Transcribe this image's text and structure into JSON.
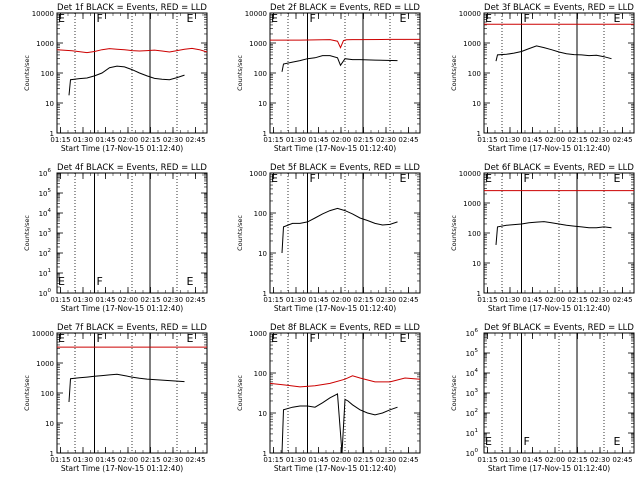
{
  "figure": {
    "xlabel": "Start Time (17-Nov-15 01:12:40)",
    "ylabel": "Counts/sec"
  },
  "colors": {
    "events": "#000000",
    "lld": "#cc0000"
  },
  "chart_data": [
    {
      "type": "line",
      "title": "Det 1f BLACK = Events, RED = LLD",
      "scale": "log",
      "ylim": [
        1,
        10000
      ],
      "ytick_labels": [
        "1",
        "10",
        "100",
        "1000",
        "10000"
      ],
      "xtick_labels": [
        "01:15",
        "01:30",
        "01:45",
        "02:00",
        "02:15",
        "02:30",
        "02:45"
      ],
      "xticks_min": [
        2.33,
        17.33,
        32.33,
        47.33,
        62.33,
        77.33,
        92.33
      ],
      "xlim": [
        0,
        100
      ],
      "markers": [
        {
          "label": "E",
          "x": 0
        },
        {
          "label": "F",
          "x": 25
        },
        {
          "label": "E",
          "x": 85
        }
      ],
      "solid_lines": [
        25,
        62
      ],
      "dotted_lines": [
        12,
        50,
        80
      ],
      "series": [
        {
          "name": "LLD",
          "color": "lld",
          "x": [
            0,
            10,
            20,
            25,
            30,
            35,
            40,
            45,
            50,
            55,
            60,
            65,
            70,
            75,
            80,
            85,
            90,
            95,
            100
          ],
          "y": [
            600,
            550,
            480,
            520,
            600,
            650,
            620,
            600,
            560,
            540,
            560,
            580,
            540,
            500,
            560,
            620,
            660,
            600,
            500
          ]
        },
        {
          "name": "Events",
          "color": "events",
          "x": [
            8,
            9,
            15,
            20,
            25,
            30,
            35,
            40,
            45,
            50,
            55,
            60,
            65,
            70,
            75,
            80,
            85
          ],
          "y": [
            18,
            60,
            65,
            68,
            80,
            100,
            150,
            170,
            160,
            130,
            100,
            80,
            66,
            62,
            60,
            70,
            85
          ]
        }
      ]
    },
    {
      "type": "line",
      "title": "Det 2f BLACK = Events, RED = LLD",
      "scale": "log",
      "ylim": [
        1,
        10000
      ],
      "ytick_labels": [
        "1",
        "10",
        "100",
        "1000",
        "10000"
      ],
      "xtick_labels": [
        "01:15",
        "01:30",
        "01:45",
        "02:00",
        "02:15",
        "02:30",
        "02:45"
      ],
      "xticks_min": [
        2.33,
        17.33,
        32.33,
        47.33,
        62.33,
        77.33,
        92.33
      ],
      "xlim": [
        0,
        100
      ],
      "markers": [
        {
          "label": "E",
          "x": 0
        },
        {
          "label": "F",
          "x": 25
        },
        {
          "label": "E",
          "x": 85
        }
      ],
      "solid_lines": [
        25,
        62
      ],
      "dotted_lines": [
        12,
        50,
        80
      ],
      "series": [
        {
          "name": "LLD",
          "color": "lld",
          "x": [
            0,
            20,
            40,
            45,
            47,
            49,
            51,
            55,
            60,
            80,
            100
          ],
          "y": [
            1250,
            1250,
            1300,
            1150,
            700,
            1200,
            1280,
            1300,
            1300,
            1320,
            1320
          ]
        },
        {
          "name": "Events",
          "color": "events",
          "x": [
            8,
            9,
            15,
            20,
            25,
            30,
            35,
            40,
            45,
            47,
            50,
            55,
            60,
            70,
            85
          ],
          "y": [
            110,
            200,
            230,
            260,
            300,
            320,
            380,
            380,
            320,
            180,
            300,
            280,
            280,
            270,
            260
          ]
        }
      ]
    },
    {
      "type": "line",
      "title": "Det 3f BLACK = Events, RED = LLD",
      "scale": "log",
      "ylim": [
        1,
        10000
      ],
      "ytick_labels": [
        "1",
        "10",
        "100",
        "1000",
        "10000"
      ],
      "xtick_labels": [
        "01:15",
        "01:30",
        "01:45",
        "02:00",
        "02:15",
        "02:30",
        "02:45"
      ],
      "xticks_min": [
        2.33,
        17.33,
        32.33,
        47.33,
        62.33,
        77.33,
        92.33
      ],
      "xlim": [
        0,
        100
      ],
      "markers": [
        {
          "label": "E",
          "x": 0
        },
        {
          "label": "F",
          "x": 25
        },
        {
          "label": "E",
          "x": 85
        }
      ],
      "solid_lines": [
        25,
        62
      ],
      "dotted_lines": [
        12,
        50,
        80
      ],
      "series": [
        {
          "name": "LLD",
          "color": "lld",
          "x": [
            0,
            20,
            40,
            60,
            80,
            100
          ],
          "y": [
            4200,
            4200,
            4200,
            4200,
            4200,
            4200
          ]
        },
        {
          "name": "Events",
          "color": "events",
          "x": [
            8,
            9,
            15,
            20,
            25,
            30,
            35,
            40,
            45,
            50,
            55,
            60,
            65,
            70,
            75,
            80,
            85
          ],
          "y": [
            250,
            400,
            420,
            460,
            520,
            650,
            800,
            700,
            600,
            500,
            440,
            410,
            400,
            380,
            390,
            350,
            300
          ]
        }
      ]
    },
    {
      "type": "line",
      "title": "Det 4f BLACK = Events, RED = LLD",
      "scale": "log",
      "ylim": [
        1,
        1000000
      ],
      "ytick_labels": [
        "10^0",
        "10^1",
        "10^2",
        "10^3",
        "10^4",
        "10^5",
        "10^6"
      ],
      "xtick_labels": [
        "01:15",
        "01:30",
        "01:45",
        "02:00",
        "02:15",
        "02:30",
        "02:45"
      ],
      "xticks_min": [
        2.33,
        17.33,
        32.33,
        47.33,
        62.33,
        77.33,
        92.33
      ],
      "xlim": [
        0,
        100
      ],
      "markers": [
        {
          "label": "E",
          "x": 0
        },
        {
          "label": "F",
          "x": 25
        },
        {
          "label": "E",
          "x": 85
        }
      ],
      "solid_lines": [
        25,
        62
      ],
      "dotted_lines": [
        12,
        50,
        80
      ],
      "series": []
    },
    {
      "type": "line",
      "title": "Det 5f BLACK = Events, RED = LLD",
      "scale": "log",
      "ylim": [
        1,
        1000
      ],
      "ytick_labels": [
        "1",
        "10",
        "100",
        "1000"
      ],
      "xtick_labels": [
        "01:15",
        "01:30",
        "01:45",
        "02:00",
        "02:15",
        "02:30",
        "02:45"
      ],
      "xticks_min": [
        2.33,
        17.33,
        32.33,
        47.33,
        62.33,
        77.33,
        92.33
      ],
      "xlim": [
        0,
        100
      ],
      "markers": [
        {
          "label": "E",
          "x": 0
        },
        {
          "label": "F",
          "x": 25
        },
        {
          "label": "E",
          "x": 85
        }
      ],
      "solid_lines": [
        25,
        62
      ],
      "dotted_lines": [
        12,
        50,
        80
      ],
      "series": [
        {
          "name": "Events",
          "color": "events",
          "x": [
            8,
            9,
            15,
            20,
            25,
            30,
            35,
            40,
            45,
            50,
            55,
            60,
            65,
            70,
            75,
            80,
            85
          ],
          "y": [
            10,
            45,
            55,
            55,
            60,
            75,
            95,
            115,
            130,
            115,
            95,
            75,
            65,
            55,
            50,
            52,
            60
          ]
        }
      ]
    },
    {
      "type": "line",
      "title": "Det 6f BLACK = Events, RED = LLD",
      "scale": "log",
      "ylim": [
        1,
        10000
      ],
      "ytick_labels": [
        "1",
        "10",
        "100",
        "1000",
        "10000"
      ],
      "xtick_labels": [
        "01:15",
        "01:30",
        "01:45",
        "02:00",
        "02:15",
        "02:30",
        "02:45"
      ],
      "xticks_min": [
        2.33,
        17.33,
        32.33,
        47.33,
        62.33,
        77.33,
        92.33
      ],
      "xlim": [
        0,
        100
      ],
      "markers": [
        {
          "label": "E",
          "x": 0
        },
        {
          "label": "F",
          "x": 25
        },
        {
          "label": "E",
          "x": 85
        }
      ],
      "solid_lines": [
        25,
        62
      ],
      "dotted_lines": [
        12,
        50,
        80
      ],
      "series": [
        {
          "name": "LLD",
          "color": "lld",
          "x": [
            0,
            20,
            40,
            60,
            80,
            100
          ],
          "y": [
            2600,
            2600,
            2600,
            2600,
            2600,
            2600
          ]
        },
        {
          "name": "Events",
          "color": "events",
          "x": [
            8,
            9,
            15,
            20,
            25,
            30,
            35,
            40,
            45,
            50,
            55,
            60,
            65,
            70,
            75,
            80,
            85
          ],
          "y": [
            40,
            160,
            180,
            190,
            200,
            220,
            230,
            240,
            220,
            200,
            180,
            170,
            160,
            150,
            150,
            160,
            150
          ]
        }
      ]
    },
    {
      "type": "line",
      "title": "Det 7f BLACK = Events, RED = LLD",
      "scale": "log",
      "ylim": [
        1,
        10000
      ],
      "ytick_labels": [
        "1",
        "10",
        "100",
        "1000",
        "10000"
      ],
      "xtick_labels": [
        "01:15",
        "01:30",
        "01:45",
        "02:00",
        "02:15",
        "02:30",
        "02:45"
      ],
      "xticks_min": [
        2.33,
        17.33,
        32.33,
        47.33,
        62.33,
        77.33,
        92.33
      ],
      "xlim": [
        0,
        100
      ],
      "markers": [
        {
          "label": "E",
          "x": 0
        },
        {
          "label": "F",
          "x": 25
        },
        {
          "label": "E",
          "x": 85
        }
      ],
      "solid_lines": [
        25,
        62
      ],
      "dotted_lines": [
        12,
        50,
        80
      ],
      "series": [
        {
          "name": "LLD",
          "color": "lld",
          "x": [
            0,
            20,
            40,
            60,
            80,
            100
          ],
          "y": [
            3400,
            3400,
            3400,
            3400,
            3400,
            3400
          ]
        },
        {
          "name": "Events",
          "color": "events",
          "x": [
            8,
            9,
            15,
            20,
            25,
            30,
            35,
            40,
            45,
            50,
            55,
            60,
            65,
            70,
            75,
            80,
            85
          ],
          "y": [
            50,
            300,
            320,
            340,
            360,
            380,
            400,
            420,
            380,
            340,
            310,
            290,
            280,
            270,
            260,
            250,
            240
          ]
        }
      ]
    },
    {
      "type": "line",
      "title": "Det 8f BLACK = Events, RED = LLD",
      "scale": "log",
      "ylim": [
        1,
        1000
      ],
      "ytick_labels": [
        "1",
        "10",
        "100",
        "1000"
      ],
      "xtick_labels": [
        "01:15",
        "01:30",
        "01:45",
        "02:00",
        "02:15",
        "02:30",
        "02:45"
      ],
      "xticks_min": [
        2.33,
        17.33,
        32.33,
        47.33,
        62.33,
        77.33,
        92.33
      ],
      "xlim": [
        0,
        100
      ],
      "markers": [
        {
          "label": "E",
          "x": 0
        },
        {
          "label": "F",
          "x": 25
        },
        {
          "label": "E",
          "x": 85
        }
      ],
      "solid_lines": [
        25,
        62
      ],
      "dotted_lines": [
        12,
        50,
        80
      ],
      "series": [
        {
          "name": "LLD",
          "color": "lld",
          "x": [
            0,
            10,
            20,
            30,
            40,
            50,
            55,
            60,
            70,
            80,
            90,
            100
          ],
          "y": [
            55,
            50,
            45,
            48,
            55,
            70,
            85,
            75,
            60,
            60,
            75,
            70
          ]
        },
        {
          "name": "Events",
          "color": "events",
          "x": [
            8,
            9,
            15,
            20,
            25,
            30,
            35,
            40,
            45,
            48,
            50,
            52,
            55,
            60,
            65,
            70,
            75,
            80,
            85
          ],
          "y": [
            1,
            12,
            14,
            15,
            15,
            14,
            18,
            24,
            30,
            1,
            22,
            20,
            16,
            12,
            10,
            9,
            10,
            12,
            14
          ]
        }
      ]
    },
    {
      "type": "line",
      "title": "Det 9f BLACK = Events, RED = LLD",
      "scale": "log",
      "ylim": [
        1,
        1000000
      ],
      "ytick_labels": [
        "10^0",
        "10^1",
        "10^2",
        "10^3",
        "10^4",
        "10^5",
        "10^6"
      ],
      "xtick_labels": [
        "01:15",
        "01:30",
        "01:45",
        "02:00",
        "02:15",
        "02:30",
        "02:45"
      ],
      "xticks_min": [
        2.33,
        17.33,
        32.33,
        47.33,
        62.33,
        77.33,
        92.33
      ],
      "xlim": [
        0,
        100
      ],
      "markers": [
        {
          "label": "E",
          "x": 0
        },
        {
          "label": "F",
          "x": 25
        },
        {
          "label": "E",
          "x": 85
        }
      ],
      "solid_lines": [
        25,
        62
      ],
      "dotted_lines": [
        12,
        50,
        80
      ],
      "series": []
    }
  ]
}
